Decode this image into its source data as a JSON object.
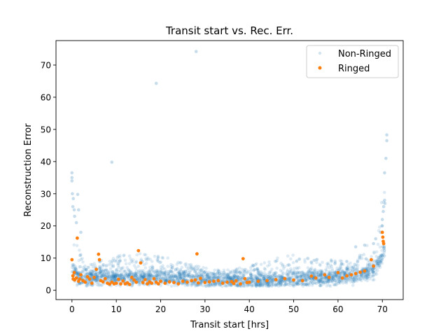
{
  "chart_data": {
    "type": "scatter",
    "title": "Transit start vs. Rec. Err.",
    "xlabel": "Transit start [hrs]",
    "ylabel": "Reconstruction Error",
    "xlim": [
      -3.6,
      74.7
    ],
    "ylim": [
      -2.9,
      77.6
    ],
    "xticks": [
      0,
      10,
      20,
      30,
      40,
      50,
      60,
      70
    ],
    "yticks": [
      0,
      10,
      20,
      30,
      40,
      50,
      60,
      70
    ],
    "grid": false,
    "legend_position": "top-right",
    "series": [
      {
        "name": "Non-Ringed",
        "color": "#1f77b4",
        "alpha": 0.15,
        "outliers": [
          [
            28,
            74.2
          ],
          [
            19,
            64.3
          ],
          [
            9,
            39.8
          ],
          [
            0,
            36.5
          ],
          [
            0,
            35
          ],
          [
            0,
            34
          ],
          [
            0.1,
            30
          ],
          [
            0.3,
            28.5
          ],
          [
            0.2,
            26
          ],
          [
            0.5,
            25
          ],
          [
            0.6,
            23
          ],
          [
            1,
            21
          ],
          [
            1.3,
            29.8
          ],
          [
            1.5,
            25
          ],
          [
            2,
            18
          ],
          [
            71,
            48.3
          ],
          [
            71,
            46.5
          ],
          [
            70.8,
            41
          ],
          [
            70.5,
            36.5
          ],
          [
            70.5,
            28
          ],
          [
            70.6,
            27
          ],
          [
            70.3,
            26
          ],
          [
            70.2,
            24.5
          ],
          [
            70,
            22
          ],
          [
            70,
            20
          ],
          [
            69.6,
            18
          ],
          [
            68.5,
            16
          ],
          [
            68,
            14.5
          ],
          [
            66,
            14
          ],
          [
            64,
            13.5
          ]
        ],
        "band_description": "dense band of points spanning x 0 to 70"
      },
      {
        "name": "Ringed",
        "color": "#ff7f0e",
        "alpha": 1.0,
        "points": [
          [
            0,
            9.5
          ],
          [
            0.2,
            4.5
          ],
          [
            0.3,
            3.5
          ],
          [
            0.5,
            5.5
          ],
          [
            0.6,
            3.2
          ],
          [
            1,
            3.8
          ],
          [
            1.2,
            16.2
          ],
          [
            1.5,
            2.8
          ],
          [
            1.8,
            3.5
          ],
          [
            2,
            4.8
          ],
          [
            2.5,
            3.0
          ],
          [
            3,
            2.5
          ],
          [
            3.5,
            4.2
          ],
          [
            4,
            3.5
          ],
          [
            4.5,
            2.2
          ],
          [
            5,
            4.0
          ],
          [
            5.5,
            6.5
          ],
          [
            6,
            11.2
          ],
          [
            6.2,
            9.5
          ],
          [
            6.5,
            3.0
          ],
          [
            7,
            2.6
          ],
          [
            7.5,
            3.6
          ],
          [
            8,
            2.2
          ],
          [
            8.5,
            1.9
          ],
          [
            9,
            2.5
          ],
          [
            9.5,
            2.0
          ],
          [
            10,
            2.2
          ],
          [
            10.5,
            3.4
          ],
          [
            11,
            2.0
          ],
          [
            11.5,
            2.9
          ],
          [
            12,
            2.0
          ],
          [
            12.5,
            2.3
          ],
          [
            13,
            1.8
          ],
          [
            13.5,
            4.0
          ],
          [
            14,
            3.2
          ],
          [
            14.5,
            2.5
          ],
          [
            15,
            12.3
          ],
          [
            15.5,
            8.5
          ],
          [
            16,
            2.4
          ],
          [
            16.5,
            3.3
          ],
          [
            17,
            2.0
          ],
          [
            17.5,
            2.6
          ],
          [
            18,
            2.2
          ],
          [
            18.5,
            3.6
          ],
          [
            19,
            2.5
          ],
          [
            19.5,
            2.0
          ],
          [
            20,
            2.8
          ],
          [
            21,
            2.2
          ],
          [
            22,
            2.6
          ],
          [
            23,
            2.4
          ],
          [
            24,
            2.0
          ],
          [
            25,
            2.8
          ],
          [
            26,
            2.5
          ],
          [
            27,
            3.0
          ],
          [
            27.8,
            3.2
          ],
          [
            28.2,
            11.3
          ],
          [
            28.5,
            2.3
          ],
          [
            29,
            3.7
          ],
          [
            30,
            2.4
          ],
          [
            31,
            2.6
          ],
          [
            32,
            2.8
          ],
          [
            33,
            3.0
          ],
          [
            34,
            2.2
          ],
          [
            35,
            2.5
          ],
          [
            36,
            2.7
          ],
          [
            36.5,
            2.1
          ],
          [
            37,
            2.9
          ],
          [
            38,
            2.0
          ],
          [
            38.6,
            9.8
          ],
          [
            39,
            3.6
          ],
          [
            39.5,
            2.4
          ],
          [
            40,
            2.5
          ],
          [
            42,
            2.8
          ],
          [
            44,
            3.0
          ],
          [
            46,
            3.3
          ],
          [
            48,
            3.6
          ],
          [
            50,
            3.2
          ],
          [
            52,
            3.0
          ],
          [
            54,
            4.4
          ],
          [
            55,
            3.8
          ],
          [
            57,
            4.8
          ],
          [
            58,
            4.0
          ],
          [
            60,
            5.5
          ],
          [
            61,
            3.8
          ],
          [
            62,
            4.5
          ],
          [
            63,
            4.8
          ],
          [
            64,
            5.2
          ],
          [
            65,
            5.6
          ],
          [
            66,
            6.0
          ],
          [
            67.5,
            9.5
          ],
          [
            68,
            7.5
          ],
          [
            70,
            18.0
          ],
          [
            70.1,
            16.5
          ],
          [
            70.2,
            15.2
          ],
          [
            70.3,
            14.5
          ]
        ]
      }
    ]
  }
}
